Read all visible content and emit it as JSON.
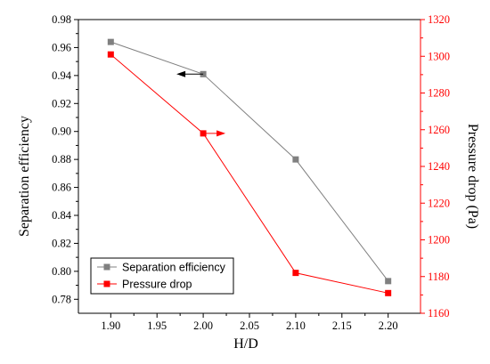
{
  "chart_data": {
    "type": "line",
    "title": "",
    "x": [
      1.9,
      2.0,
      2.1,
      2.2
    ],
    "xlabel": "H/D",
    "xlim": [
      1.865,
      2.235
    ],
    "xticks": [
      "1.90",
      "1.95",
      "2.00",
      "2.05",
      "2.10",
      "2.15",
      "2.20"
    ],
    "ylabel_left": "Separation efficiency",
    "ylim_left": [
      0.77,
      0.98
    ],
    "yticks_left": [
      "0.78",
      "0.80",
      "0.82",
      "0.84",
      "0.86",
      "0.88",
      "0.90",
      "0.92",
      "0.94",
      "0.96",
      "0.98"
    ],
    "ylabel_right": "Pressure drop (Pa)",
    "ylim_right": [
      1160,
      1320
    ],
    "yticks_right": [
      "1160",
      "1180",
      "1200",
      "1220",
      "1240",
      "1260",
      "1280",
      "1300",
      "1320"
    ],
    "grid": false,
    "legend_position": "bottom-left",
    "series": [
      {
        "name": "Separation efficiency",
        "axis": "left",
        "color": "#808080",
        "marker": "square",
        "values": [
          0.964,
          0.941,
          0.88,
          0.793
        ]
      },
      {
        "name": "Pressure drop",
        "axis": "right",
        "color": "#ff0000",
        "marker": "square",
        "values": [
          1301,
          1258,
          1182,
          1171
        ]
      }
    ],
    "annotations": [
      {
        "type": "arrow",
        "direction": "left",
        "color": "#000000",
        "series": "Separation efficiency",
        "x": 2.0
      },
      {
        "type": "arrow",
        "direction": "right",
        "color": "#ff0000",
        "series": "Pressure drop",
        "x": 2.0
      }
    ]
  }
}
